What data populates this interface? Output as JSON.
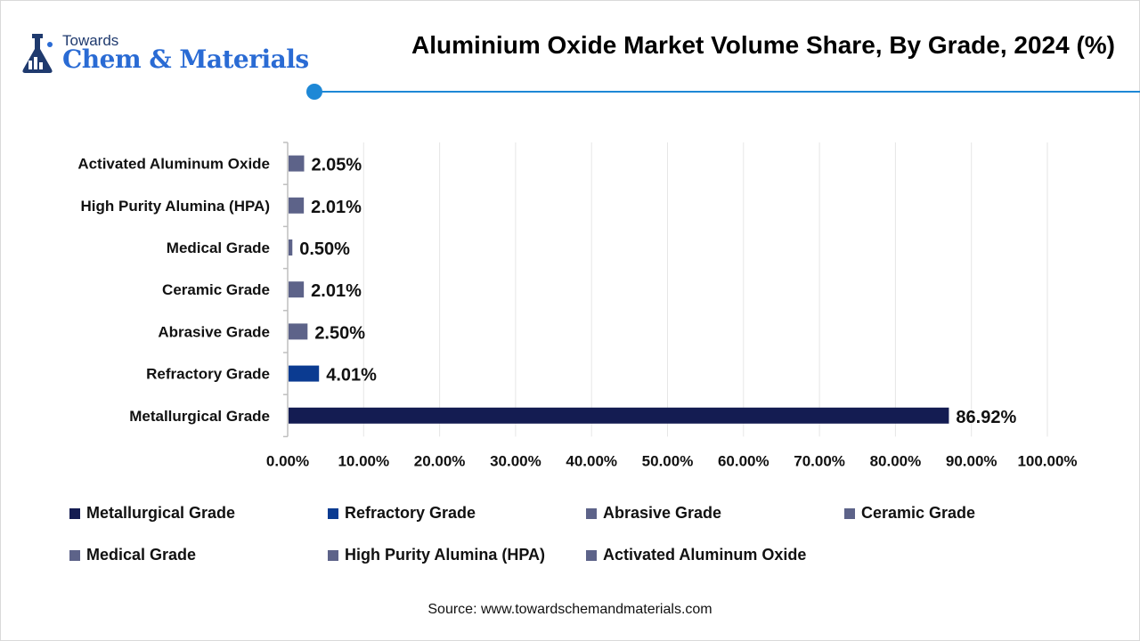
{
  "logo": {
    "line1": "Towards",
    "line2": "Chem & Materials"
  },
  "colors": {
    "accent": "#1e88d6",
    "dark_navy": "#141c52",
    "royal_blue": "#0b3b91",
    "slate": "#5d6389"
  },
  "chart_data": {
    "type": "bar",
    "orientation": "horizontal",
    "title": "Aluminium Oxide Market Volume Share, By Grade, 2024 (%)",
    "categories": [
      "Activated Aluminum Oxide",
      "High Purity Alumina (HPA)",
      "Medical Grade",
      "Ceramic Grade",
      "Abrasive Grade",
      "Refractory Grade",
      "Metallurgical Grade"
    ],
    "values": [
      2.05,
      2.01,
      0.5,
      2.01,
      2.5,
      4.01,
      86.92
    ],
    "value_labels": [
      "2.05%",
      "2.01%",
      "0.50%",
      "2.01%",
      "2.50%",
      "4.01%",
      "86.92%"
    ],
    "bar_colors": [
      "#5d6389",
      "#5d6389",
      "#5d6389",
      "#5d6389",
      "#5d6389",
      "#0b3b91",
      "#141c52"
    ],
    "xlim": [
      0,
      100
    ],
    "xticks": [
      "0.00%",
      "10.00%",
      "20.00%",
      "30.00%",
      "40.00%",
      "50.00%",
      "60.00%",
      "70.00%",
      "80.00%",
      "90.00%",
      "100.00%"
    ],
    "grid": true,
    "legend": [
      {
        "label": "Metallurgical Grade",
        "color": "#141c52"
      },
      {
        "label": "Refractory Grade",
        "color": "#0b3b91"
      },
      {
        "label": "Abrasive Grade",
        "color": "#5d6389"
      },
      {
        "label": "Ceramic Grade",
        "color": "#5d6389"
      },
      {
        "label": "Medical Grade",
        "color": "#5d6389"
      },
      {
        "label": "High Purity Alumina (HPA)",
        "color": "#5d6389"
      },
      {
        "label": "Activated Aluminum Oxide",
        "color": "#5d6389"
      }
    ],
    "legend_placement": "bottom"
  },
  "source": "Source: www.towardschemandmaterials.com"
}
